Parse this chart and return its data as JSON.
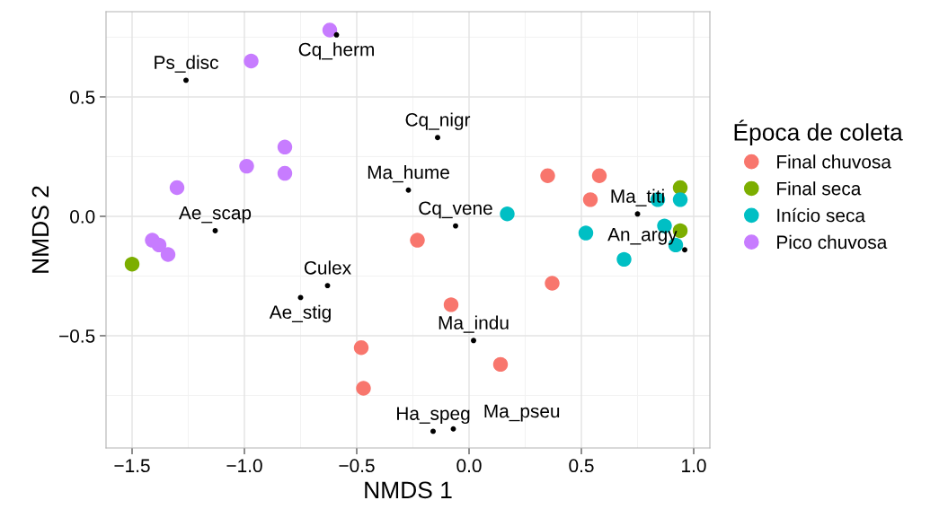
{
  "chart_data": {
    "type": "scatter",
    "xlabel": "NMDS 1",
    "ylabel": "NMDS 2",
    "legend_title": "Época de coleta",
    "legend": "right",
    "grid": true,
    "marker": "circle",
    "xlim": [
      -1.616,
      1.072
    ],
    "ylim": [
      -0.97,
      0.857
    ],
    "xticks": [
      {
        "value": -1.5,
        "label": "−1.5"
      },
      {
        "value": -1.0,
        "label": "−1.0"
      },
      {
        "value": -0.5,
        "label": "−0.5"
      },
      {
        "value": 0.0,
        "label": "0.0"
      },
      {
        "value": 0.5,
        "label": "0.5"
      },
      {
        "value": 1.0,
        "label": "1.0"
      }
    ],
    "yticks": [
      {
        "value": -0.5,
        "label": "−0.5"
      },
      {
        "value": 0.0,
        "label": "0.0"
      },
      {
        "value": 0.5,
        "label": "0.5"
      }
    ],
    "series": [
      {
        "name": "Final chuvosa",
        "color": "#f8766d",
        "x": [
          -0.23,
          0.35,
          0.58,
          0.54,
          0.37,
          -0.08,
          -0.48,
          -0.47,
          0.14
        ],
        "values": [
          -0.1,
          0.17,
          0.17,
          0.07,
          -0.28,
          -0.37,
          -0.55,
          -0.72,
          -0.62
        ]
      },
      {
        "name": "Final seca",
        "color": "#7cae00",
        "x": [
          -1.5,
          0.94,
          0.94
        ],
        "values": [
          -0.2,
          0.12,
          -0.06
        ]
      },
      {
        "name": "Início seca",
        "color": "#00bfc4",
        "x": [
          0.17,
          0.52,
          0.84,
          0.94,
          0.87,
          0.92,
          0.69
        ],
        "values": [
          0.01,
          -0.07,
          0.07,
          0.07,
          -0.04,
          -0.12,
          -0.18
        ]
      },
      {
        "name": "Pico chuvosa",
        "color": "#c77cff",
        "x": [
          -0.62,
          -0.97,
          -0.82,
          -0.99,
          -0.82,
          -1.3,
          -1.41,
          -1.38,
          -1.34
        ],
        "values": [
          0.78,
          0.65,
          0.29,
          0.21,
          0.18,
          0.12,
          -0.1,
          -0.12,
          -0.16
        ]
      },
      {
        "color": "#000000",
        "x": [
          -0.59,
          -1.26,
          -0.14,
          -0.27,
          -1.13,
          -0.06,
          0.75,
          0.96,
          -0.63,
          -0.75,
          0.02,
          -0.16,
          -0.07
        ],
        "values": [
          0.76,
          0.57,
          0.33,
          0.11,
          -0.06,
          -0.04,
          0.01,
          -0.14,
          -0.29,
          -0.34,
          -0.52,
          -0.9,
          -0.89
        ]
      }
    ],
    "annotations": [
      {
        "text": "Cq_herm",
        "x": -0.59,
        "y": 0.76
      },
      {
        "text": "Ps_disc",
        "x": -1.26,
        "y": 0.57
      },
      {
        "text": "Cq_nigr",
        "x": -0.14,
        "y": 0.33
      },
      {
        "text": "Ma_hume",
        "x": -0.27,
        "y": 0.11
      },
      {
        "text": "Ae_scap",
        "x": -1.13,
        "y": -0.06
      },
      {
        "text": "Cq_vene",
        "x": -0.06,
        "y": -0.04
      },
      {
        "text": "Ma_titi",
        "x": 0.75,
        "y": 0.01
      },
      {
        "text": "An_argy",
        "x": 0.96,
        "y": -0.14
      },
      {
        "text": "Culex",
        "x": -0.63,
        "y": -0.29
      },
      {
        "text": "Ae_stig",
        "x": -0.75,
        "y": -0.34
      },
      {
        "text": "Ma_indu",
        "x": 0.02,
        "y": -0.52
      },
      {
        "text": "Ha_speg",
        "x": -0.16,
        "y": -0.9
      },
      {
        "text": "Ma_pseu",
        "x": -0.07,
        "y": -0.89
      }
    ]
  }
}
